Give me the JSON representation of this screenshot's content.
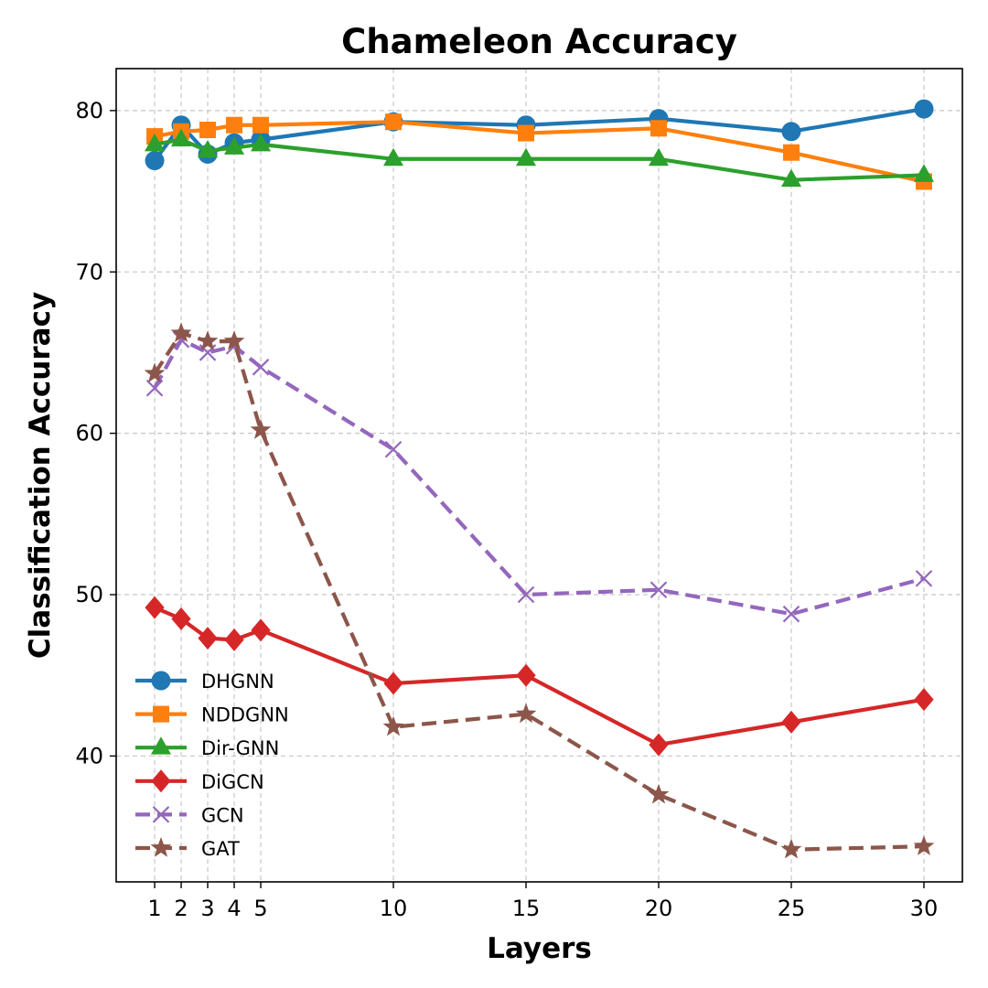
{
  "chart_data": {
    "type": "line",
    "title": "Chameleon Accuracy",
    "xlabel": "Layers",
    "ylabel": "Classification Accuracy",
    "x": [
      1,
      2,
      3,
      4,
      5,
      10,
      15,
      20,
      25,
      30
    ],
    "xticks": [
      "1",
      "2",
      "3",
      "4",
      "5",
      "10",
      "15",
      "20",
      "25",
      "30"
    ],
    "yticks": [
      40,
      50,
      60,
      70,
      80
    ],
    "xlim": [
      -0.45,
      31.45
    ],
    "ylim": [
      32.2,
      82.6
    ],
    "grid": true,
    "legend_position": "lower-left",
    "series": [
      {
        "name": "DHGNN",
        "color": "#1f77b4",
        "marker": "circle",
        "dashed": false,
        "values": [
          76.9,
          79.1,
          77.3,
          78.0,
          78.2,
          79.3,
          79.1,
          79.5,
          78.7,
          80.1
        ]
      },
      {
        "name": "NDDGNN",
        "color": "#ff7f0e",
        "marker": "square",
        "dashed": false,
        "values": [
          78.4,
          78.7,
          78.8,
          79.1,
          79.1,
          79.3,
          78.6,
          78.9,
          77.4,
          75.6
        ]
      },
      {
        "name": "Dir-GNN",
        "color": "#2ca02c",
        "marker": "triangle",
        "dashed": false,
        "values": [
          77.9,
          78.2,
          77.5,
          77.7,
          77.9,
          77.0,
          77.0,
          77.0,
          75.7,
          76.0
        ]
      },
      {
        "name": "DiGCN",
        "color": "#d62728",
        "marker": "diamond",
        "dashed": false,
        "values": [
          49.2,
          48.5,
          47.3,
          47.2,
          47.8,
          44.5,
          45.0,
          40.7,
          42.1,
          43.5
        ]
      },
      {
        "name": "GCN",
        "color": "#9467bd",
        "marker": "x",
        "dashed": true,
        "values": [
          62.8,
          65.8,
          65.0,
          65.4,
          64.1,
          59.0,
          50.0,
          50.3,
          48.8,
          51.0
        ]
      },
      {
        "name": "GAT",
        "color": "#8c564b",
        "marker": "star",
        "dashed": true,
        "values": [
          63.7,
          66.2,
          65.7,
          65.7,
          60.2,
          41.8,
          42.6,
          37.6,
          34.2,
          34.4
        ]
      }
    ]
  }
}
